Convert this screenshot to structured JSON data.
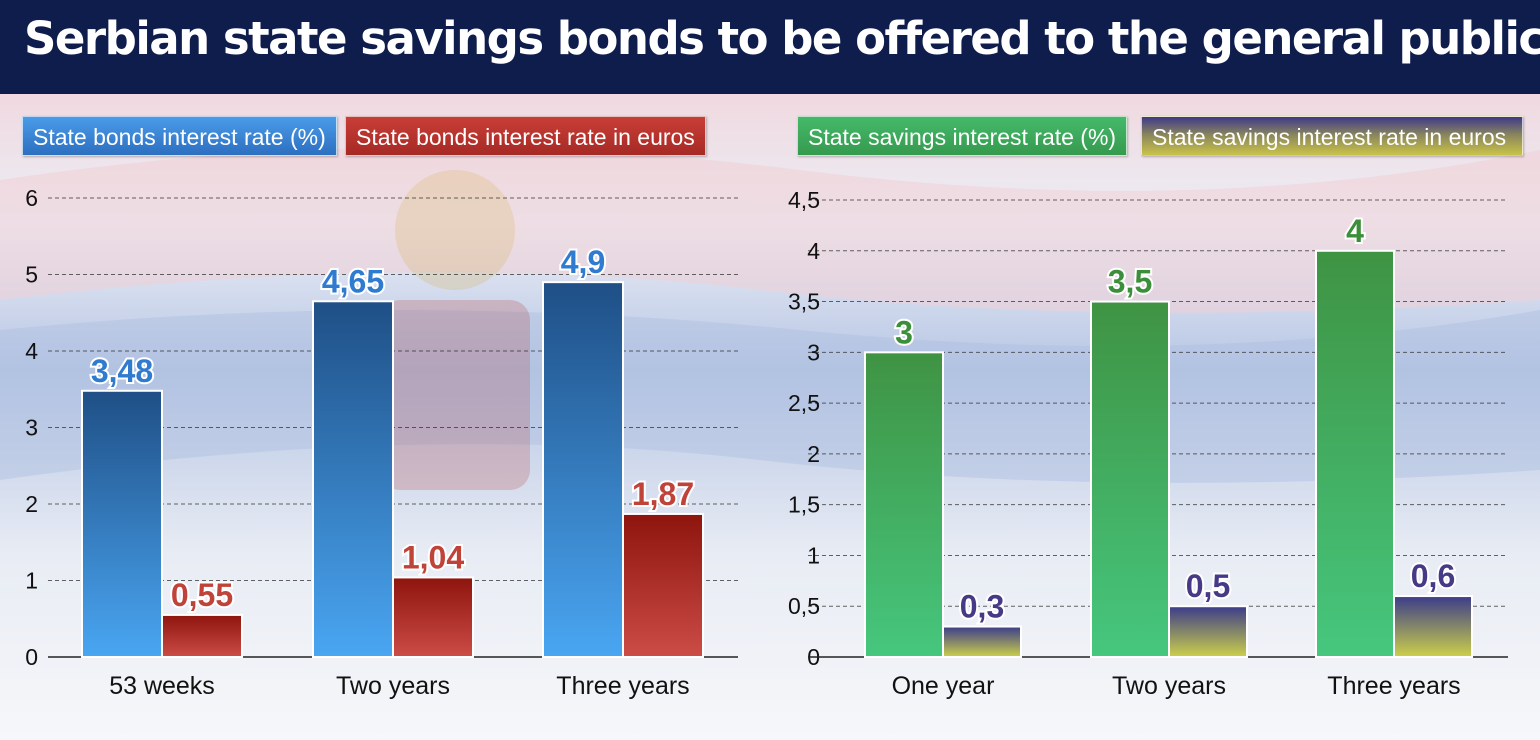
{
  "title": "Serbian state savings bonds to be offered to the general public",
  "colors": {
    "title_bg": "#0f1d4d",
    "bonds": "#3f8fdf",
    "bonds_euro": "#b8302b",
    "savings": "#3fa856",
    "savings_euro": "#4b3e8c",
    "bonds_label": "#2e7bd0",
    "bonds_euro_label": "#c0433a",
    "savings_label": "#3c8f3a",
    "savings_euro_label": "#463a86"
  },
  "chart_data": [
    {
      "type": "bar",
      "categories": [
        "53 weeks",
        "Two years",
        "Three years"
      ],
      "series": [
        {
          "name": "State bonds interest rate (%)",
          "values": [
            3.48,
            4.65,
            4.9
          ],
          "labels": [
            "3,48",
            "4,65",
            "4,9"
          ]
        },
        {
          "name": "State bonds interest rate in euros",
          "values": [
            0.55,
            1.04,
            1.87
          ],
          "labels": [
            "0,55",
            "1,04",
            "1,87"
          ]
        }
      ],
      "ylim": [
        0,
        6
      ],
      "yticks": [
        0,
        1,
        2,
        3,
        4,
        5,
        6
      ],
      "ytick_labels": [
        "0",
        "1",
        "2",
        "3",
        "4",
        "5",
        "6"
      ],
      "grid": true,
      "legend_position": "top-left"
    },
    {
      "type": "bar",
      "categories": [
        "One year",
        "Two years",
        "Three years"
      ],
      "series": [
        {
          "name": "State savings interest rate (%)",
          "values": [
            3,
            3.5,
            4
          ],
          "labels": [
            "3",
            "3,5",
            "4"
          ]
        },
        {
          "name": "State savings interest rate in euros",
          "values": [
            0.3,
            0.5,
            0.6
          ],
          "labels": [
            "0,3",
            "0,5",
            "0,6"
          ]
        }
      ],
      "ylim": [
        0,
        4.5
      ],
      "yticks": [
        0,
        0.5,
        1,
        1.5,
        2,
        2.5,
        3,
        3.5,
        4,
        4.5
      ],
      "ytick_labels": [
        "0",
        "0,5",
        "1",
        "1,5",
        "2",
        "2,5",
        "3",
        "3,5",
        "4",
        "4,5"
      ],
      "grid": true,
      "legend_position": "top-right"
    }
  ]
}
